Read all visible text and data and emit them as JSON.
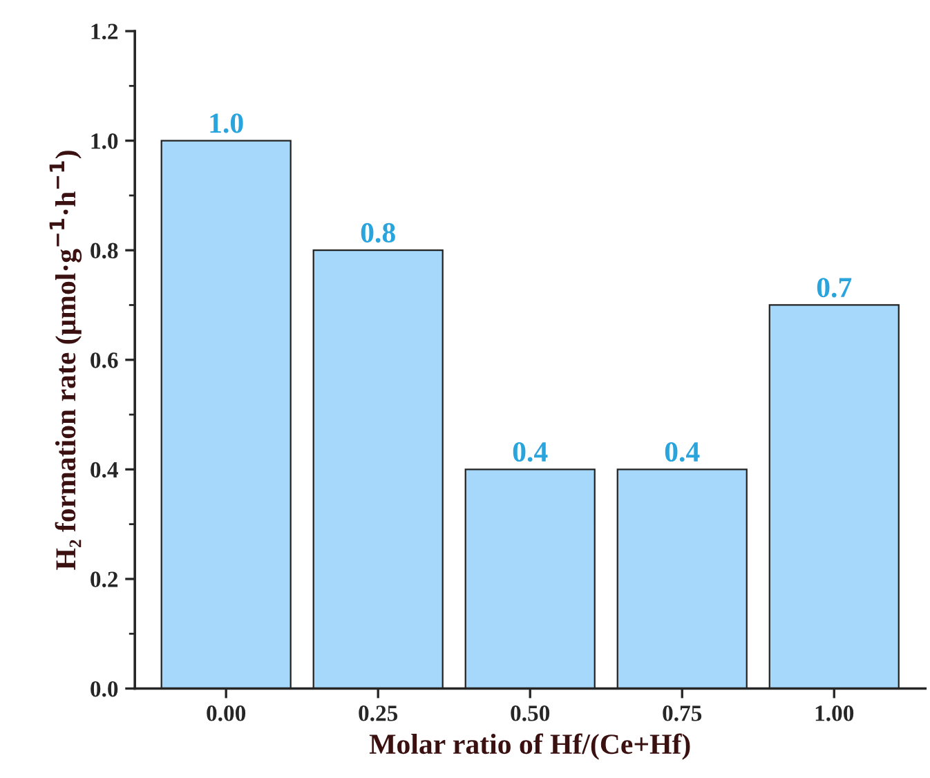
{
  "chart_data": {
    "type": "bar",
    "xlabel": "Molar ratio of Hf/(Ce+Hf)",
    "ylabel": "H₂ formation rate (μmol·g$^{−1}$·h$^{−1}$)",
    "categories": [
      "0.00",
      "0.25",
      "0.50",
      "0.75",
      "1.00"
    ],
    "values": [
      1.0,
      0.8,
      0.4,
      0.4,
      0.7
    ],
    "value_labels": [
      "1.0",
      "0.8",
      "0.4",
      "0.4",
      "0.7"
    ],
    "color": "#a6d8fb",
    "ylim": [
      0,
      1.2
    ],
    "yticks": [
      {
        "value": 0,
        "label": "0.0"
      },
      {
        "value": 0.2,
        "label": "0.2"
      },
      {
        "value": 0.4,
        "label": "0.4"
      },
      {
        "value": 0.6,
        "label": "0.6"
      },
      {
        "value": 0.8,
        "label": "0.8"
      },
      {
        "value": 1.0,
        "label": "1.0"
      },
      {
        "value": 1.2,
        "label": "1.2"
      }
    ],
    "grid": false,
    "legend": false
  }
}
